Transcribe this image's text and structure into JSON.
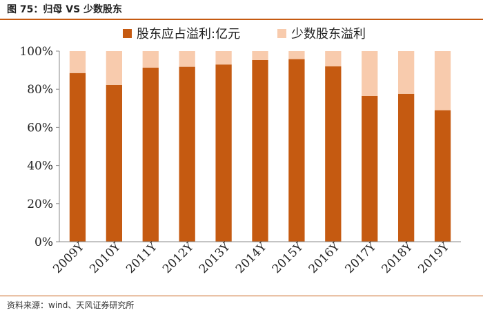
{
  "title": "图 75：归母 VS 少数股东",
  "source": "资料来源：wind、天风证券研究所",
  "chart_data": {
    "type": "bar",
    "stacked": true,
    "percent": true,
    "categories": [
      "2009Y",
      "2010Y",
      "2011Y",
      "2012Y",
      "2013Y",
      "2014Y",
      "2015Y",
      "2016Y",
      "2017Y",
      "2018Y",
      "2019Y"
    ],
    "series": [
      {
        "name": "股东应占溢利:亿元",
        "color": "#c55a11",
        "values": [
          88.5,
          82.3,
          91.3,
          91.8,
          93.0,
          95.3,
          95.8,
          92.0,
          76.5,
          77.6,
          69.0
        ]
      },
      {
        "name": "少数股东溢利",
        "color": "#f8cbad",
        "values": [
          11.5,
          17.7,
          8.7,
          8.2,
          7.0,
          4.7,
          4.2,
          8.0,
          23.5,
          22.4,
          31.0
        ]
      }
    ],
    "ylim": [
      0,
      100
    ],
    "yticks": [
      "0%",
      "20%",
      "40%",
      "60%",
      "80%",
      "100%"
    ],
    "legend_position": "top",
    "grid": false
  }
}
